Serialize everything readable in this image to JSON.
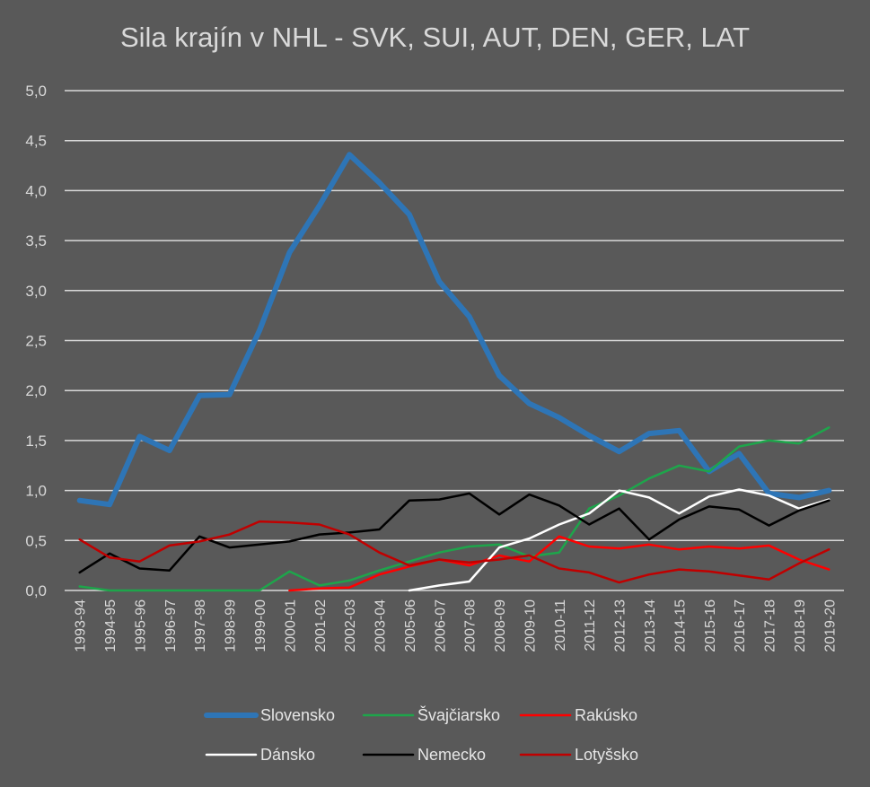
{
  "chart_data": {
    "type": "line",
    "title": "Sila krajín v NHL - SVK, SUI, AUT, DEN, GER, LAT",
    "xlabel": "",
    "ylabel": "",
    "ylim": [
      0,
      5
    ],
    "y_ticks": [
      "0,0",
      "0,5",
      "1,0",
      "1,5",
      "2,0",
      "2,5",
      "3,0",
      "3,5",
      "4,0",
      "4,5",
      "5,0"
    ],
    "grid": true,
    "legend_position": "bottom",
    "categories": [
      "1993-94",
      "1994-95",
      "1995-96",
      "1996-97",
      "1997-98",
      "1998-99",
      "1999-00",
      "2000-01",
      "2001-02",
      "2002-03",
      "2003-04",
      "2005-06",
      "2006-07",
      "2007-08",
      "2008-09",
      "2009-10",
      "2010-11",
      "2011-12",
      "2012-13",
      "2013-14",
      "2014-15",
      "2015-16",
      "2016-17",
      "2017-18",
      "2018-19",
      "2019-20"
    ],
    "series": [
      {
        "name": "Slovensko",
        "color": "#2e75b6",
        "width": 6,
        "values": [
          0.9,
          0.86,
          1.54,
          1.4,
          1.95,
          1.96,
          2.6,
          3.38,
          3.85,
          4.36,
          4.08,
          3.76,
          3.09,
          2.74,
          2.15,
          1.87,
          1.73,
          1.55,
          1.39,
          1.57,
          1.6,
          1.19,
          1.37,
          0.97,
          0.93,
          1.0
        ]
      },
      {
        "name": "Švajčiarsko",
        "color": "#1ea54b",
        "width": 2.5,
        "values": [
          0.04,
          0.0,
          0.0,
          0.0,
          0.0,
          0.0,
          0.0,
          0.19,
          0.05,
          0.1,
          0.2,
          0.29,
          0.38,
          0.44,
          0.46,
          0.34,
          0.38,
          0.82,
          0.95,
          1.12,
          1.25,
          1.19,
          1.44,
          1.5,
          1.47,
          1.63
        ]
      },
      {
        "name": "Rakúsko",
        "color": "#ff0000",
        "width": 2.5,
        "values": [
          null,
          null,
          null,
          null,
          null,
          null,
          null,
          0.0,
          0.02,
          0.03,
          0.16,
          0.24,
          0.31,
          0.25,
          0.35,
          0.29,
          0.54,
          0.44,
          0.42,
          0.46,
          0.41,
          0.44,
          0.42,
          0.45,
          0.31,
          0.21
        ]
      },
      {
        "name": "Dánsko",
        "color": "#ffffff",
        "width": 2.5,
        "values": [
          null,
          null,
          null,
          null,
          null,
          null,
          null,
          null,
          null,
          null,
          null,
          0.0,
          0.05,
          0.09,
          0.43,
          0.52,
          0.66,
          0.77,
          1.0,
          0.93,
          0.77,
          0.94,
          1.01,
          0.95,
          0.82,
          0.91
        ]
      },
      {
        "name": "Nemecko",
        "color": "#000000",
        "width": 2.5,
        "values": [
          0.18,
          0.37,
          0.22,
          0.2,
          0.54,
          0.43,
          0.46,
          0.49,
          0.56,
          0.58,
          0.61,
          0.9,
          0.91,
          0.97,
          0.76,
          0.96,
          0.85,
          0.66,
          0.82,
          0.51,
          0.71,
          0.84,
          0.81,
          0.65,
          0.8,
          0.9
        ]
      },
      {
        "name": "Lotyšsko",
        "color": "#c00000",
        "width": 2.5,
        "values": [
          0.51,
          0.33,
          0.29,
          0.45,
          0.49,
          0.56,
          0.69,
          0.68,
          0.66,
          0.56,
          0.38,
          0.25,
          0.31,
          0.28,
          0.31,
          0.35,
          0.22,
          0.18,
          0.08,
          0.16,
          0.21,
          0.19,
          0.15,
          0.11,
          0.27,
          0.41
        ]
      }
    ]
  }
}
